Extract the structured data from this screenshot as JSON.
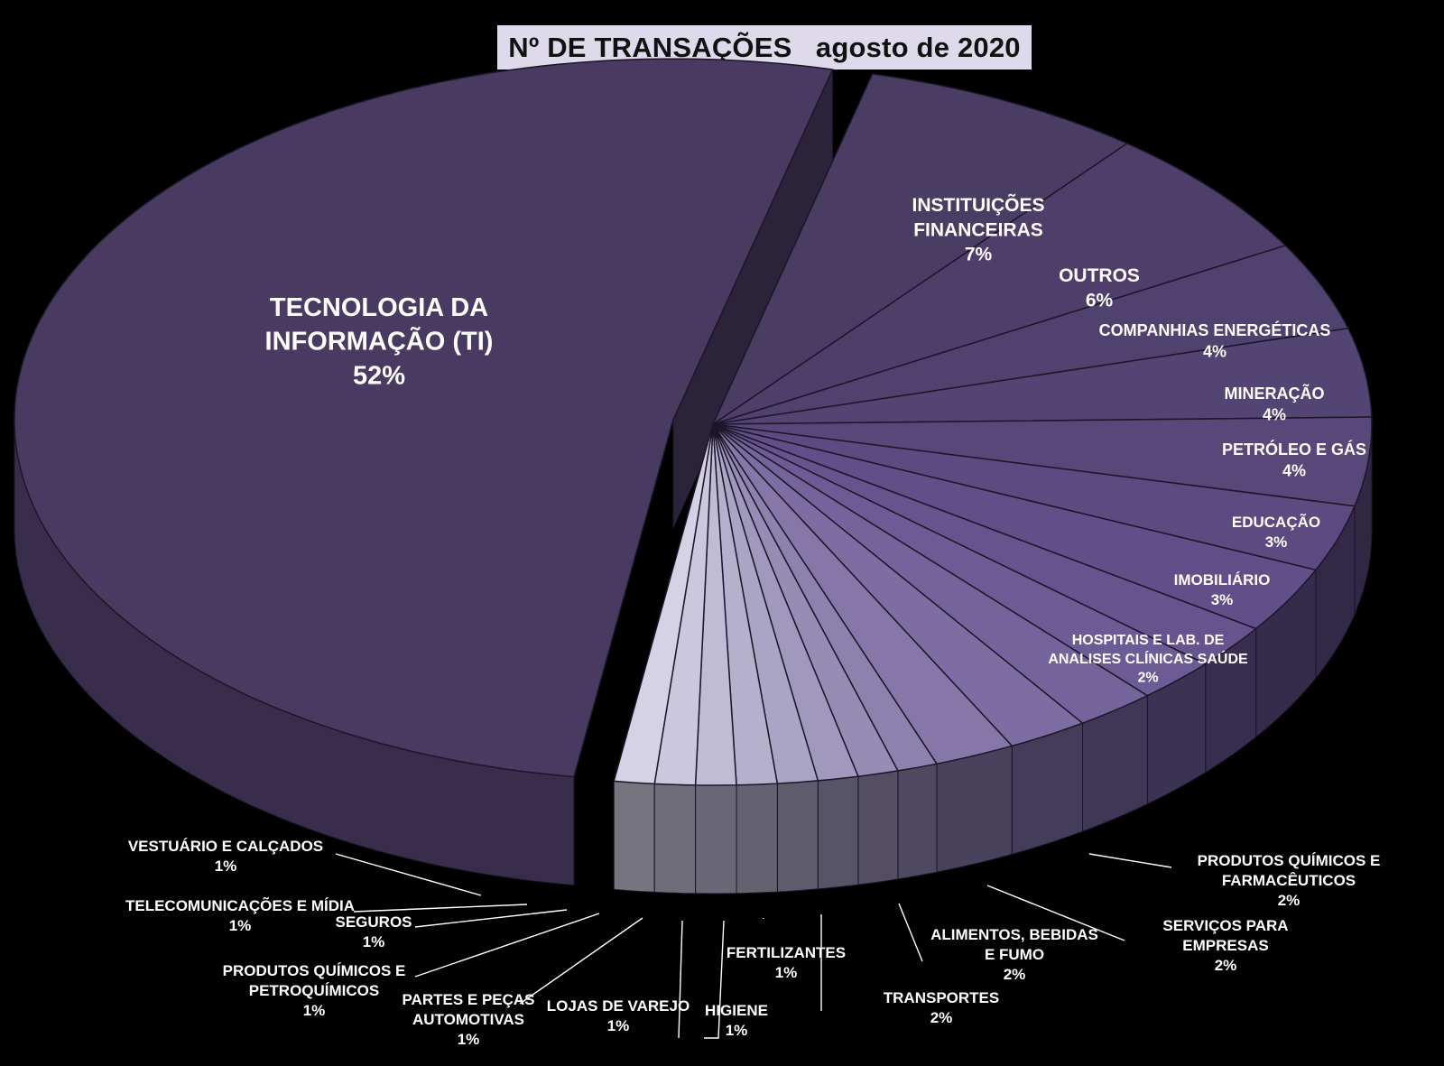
{
  "title": "Nº DE TRANSAÇÕES   agosto de 2020",
  "chart_data": {
    "type": "pie",
    "title": "Nº DE TRANSAÇÕES   agosto de 2020",
    "slices": [
      {
        "label": [
          "TECNOLOGIA DA",
          "INFORMAÇÃO (TI)"
        ],
        "value": 52,
        "value_label": "52%",
        "color": "#483a60"
      },
      {
        "label": [
          "INSTITUIÇÕES",
          "FINANCEIRAS"
        ],
        "value": 7,
        "value_label": "7%",
        "color": "#4a3d64"
      },
      {
        "label": [
          "OUTROS"
        ],
        "value": 6,
        "value_label": "6%",
        "color": "#4d3f69"
      },
      {
        "label": [
          "COMPANHIAS ENERGÉTICAS"
        ],
        "value": 4,
        "value_label": "4%",
        "color": "#50426e"
      },
      {
        "label": [
          "MINERAÇÃO"
        ],
        "value": 4,
        "value_label": "4%",
        "color": "#534573"
      },
      {
        "label": [
          "PETRÓLEO E GÁS"
        ],
        "value": 4,
        "value_label": "4%",
        "color": "#574879"
      },
      {
        "label": [
          "EDUCAÇÃO"
        ],
        "value": 3,
        "value_label": "3%",
        "color": "#5b4b80"
      },
      {
        "label": [
          "IMOBILIÁRIO"
        ],
        "value": 3,
        "value_label": "3%",
        "color": "#604f88"
      },
      {
        "label": [
          "HOSPITAIS E LAB. DE",
          "ANALISES CLÍNICAS SAÚDE"
        ],
        "value": 2,
        "value_label": "2%",
        "color": "#66548f"
      },
      {
        "label": [
          "PRODUTOS QUÍMICOS E",
          "FARMACÊUTICOS"
        ],
        "value": 2,
        "value_label": "2%",
        "color": "#6c5c96"
      },
      {
        "label": [
          "SERVIÇOS PARA",
          "EMPRESAS"
        ],
        "value": 2,
        "value_label": "2%",
        "color": "#74649c"
      },
      {
        "label": [
          "ALIMENTOS, BEBIDAS",
          "E FUMO"
        ],
        "value": 2,
        "value_label": "2%",
        "color": "#7c6ea2"
      },
      {
        "label": [
          "TRANSPORTES"
        ],
        "value": 2,
        "value_label": "2%",
        "color": "#8578a9"
      },
      {
        "label": [
          "FERTILIZANTES"
        ],
        "value": 1,
        "value_label": "1%",
        "color": "#8d82ae"
      },
      {
        "label": [
          "HIGIENE"
        ],
        "value": 1,
        "value_label": "1%",
        "color": "#968db5"
      },
      {
        "label": [
          "LOJAS DE VAREJO"
        ],
        "value": 1,
        "value_label": "1%",
        "color": "#a099bd"
      },
      {
        "label": [
          "PARTES E PEÇAS",
          "AUTOMOTIVAS"
        ],
        "value": 1,
        "value_label": "1%",
        "color": "#aaa5c5"
      },
      {
        "label": [
          "PRODUTOS QUÍMICOS E",
          "PETROQUÍMICOS"
        ],
        "value": 1,
        "value_label": "1%",
        "color": "#b5b1cd"
      },
      {
        "label": [
          "SEGUROS"
        ],
        "value": 1,
        "value_label": "1%",
        "color": "#c0bcd6"
      },
      {
        "label": [
          "TELECOMUNICAÇÕES E MÍDIA"
        ],
        "value": 1,
        "value_label": "1%",
        "color": "#cac7de"
      },
      {
        "label": [
          "VESTUÁRIO E CALÇADOS"
        ],
        "value": 1,
        "value_label": "1%",
        "color": "#d5d2e6"
      }
    ],
    "legend": "none",
    "labels": "outside-with-leaders-for-small-slices"
  }
}
